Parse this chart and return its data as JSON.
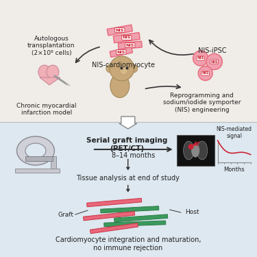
{
  "bg_top": "#f0ece8",
  "bg_bottom": "#dde8f0",
  "texts": {
    "autologous": "Autologous\ntransplantation\n(2×10⁸ cells)",
    "nis_cm": "NIS-cardiomyocyte",
    "nis_ipsc": "NIS-iPSC",
    "reprogramming": "Reprogramming and\nsodium/iodide symporter\n(NIS) engineering",
    "chronic": "Chronic myocardial\ninfarction model",
    "serial": "Serial graft imaging\n(PET/CT)",
    "months_range": "8–14 months",
    "tissue": "Tissue analysis at end of study",
    "nis_signal": "NIS-mediated\nsignal",
    "months_label": "Months",
    "graft": "Graft",
    "host": "Host",
    "conclusion": "Cardiomyocyte integration and maturation,\nno immune rejection"
  },
  "colors": {
    "pink": "#e8677a",
    "pink_light": "#f0a0ae",
    "red": "#cc2233",
    "green": "#3a9a5c",
    "green_dark": "#2d7a48",
    "gray": "#888888",
    "arrow_dark": "#333333",
    "white": "#ffffff",
    "ct_bg": "#111111",
    "text_dark": "#222222"
  }
}
